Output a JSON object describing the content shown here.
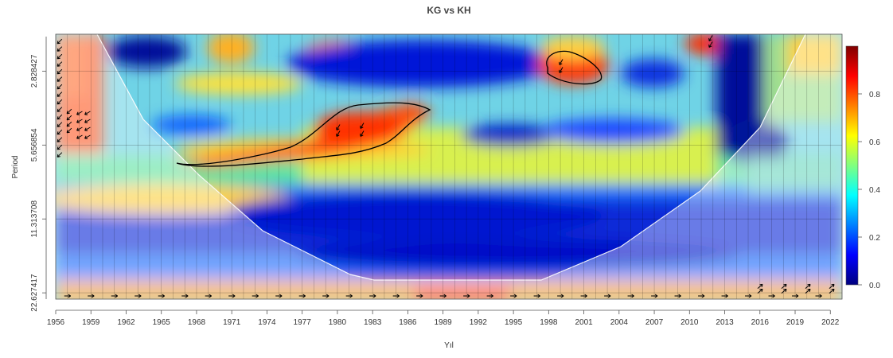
{
  "chart_data": {
    "type": "heatmap",
    "subtype": "wavelet coherence",
    "title": "KG vs KH",
    "xlabel": "Yıl",
    "ylabel": "Period",
    "x_range": [
      1956,
      2023
    ],
    "x_ticks": [
      "1956",
      "1959",
      "1962",
      "1965",
      "1968",
      "1971",
      "1974",
      "1977",
      "1980",
      "1983",
      "1986",
      "1989",
      "1992",
      "1995",
      "1998",
      "2001",
      "2004",
      "2007",
      "2010",
      "2013",
      "2016",
      "2019",
      "2022"
    ],
    "y_scale": "log2",
    "y_ticks": [
      "2.828427",
      "5.656854",
      "11.313708",
      "22.627417"
    ],
    "y_range": [
      2,
      24
    ],
    "colorbar": {
      "ticks": [
        "0.0",
        "0.2",
        "0.4",
        "0.6",
        "0.8"
      ],
      "range": [
        0,
        1
      ],
      "colormap": "jet"
    },
    "regions": [
      {
        "label": "significant region",
        "x": [
          1966,
          1986
        ],
        "period": [
          4.5,
          6.2
        ],
        "value": 0.85
      },
      {
        "label": "significant region",
        "x": [
          1999,
          2002
        ],
        "period": [
          2.5,
          3.3
        ],
        "value": 0.9
      },
      {
        "label": "high coherence",
        "x": [
          1956,
          1959
        ],
        "period": [
          2,
          7
        ],
        "value": 0.7
      },
      {
        "label": "high coherence",
        "x": [
          1987,
          1992
        ],
        "period": [
          20,
          24
        ],
        "value": 0.9
      },
      {
        "label": "high coherence",
        "x": [
          2010,
          2014
        ],
        "period": [
          2,
          2.3
        ],
        "value": 0.85
      }
    ],
    "grid": true,
    "legend": "right"
  }
}
